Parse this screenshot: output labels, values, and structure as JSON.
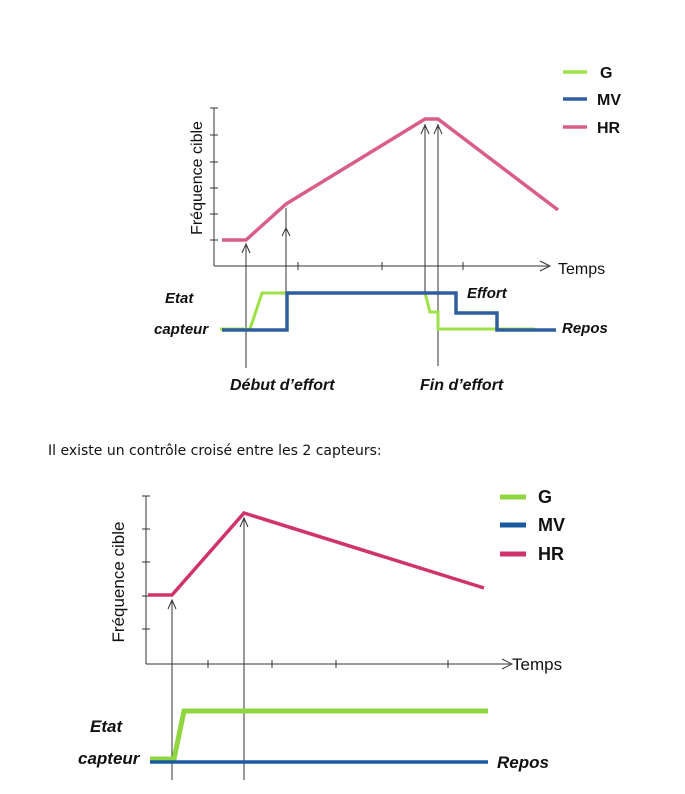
{
  "diagram1": {
    "legend": [
      {
        "label": "G",
        "color": "#9ee247"
      },
      {
        "label": "MV",
        "color": "#2f5e9e"
      },
      {
        "label": "HR",
        "color": "#d95d8a"
      }
    ],
    "ylabel": "Fréquence cible",
    "xlabel": "Temps",
    "state_label_1": "Etat",
    "state_label_2": "capteur",
    "effort_label": "Effort",
    "repos_label": "Repos",
    "start_label": "Début d’effort",
    "end_label": "Fin d’effort"
  },
  "caption": "Il existe un contrôle croisé entre les 2 capteurs:",
  "diagram2": {
    "legend": [
      {
        "label": "G",
        "color": "#8fd640"
      },
      {
        "label": "MV",
        "color": "#1a5aa0"
      },
      {
        "label": "HR",
        "color": "#d0336b"
      }
    ],
    "ylabel": "Fréquence cible",
    "xlabel": "Temps",
    "state_label_1": "Etat",
    "state_label_2": "capteur",
    "repos_label": "Repos"
  }
}
